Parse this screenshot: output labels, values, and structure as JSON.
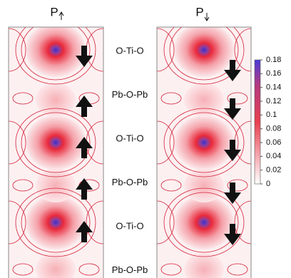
{
  "panels": [
    {
      "title": "P"
    },
    {
      "title": "P"
    }
  ],
  "layer_labels": [
    "O-Ti-O",
    "Pb-O-Pb",
    "O-Ti-O",
    "Pb-O-Pb",
    "O-Ti-O",
    "Pb-O-Pb"
  ],
  "colorbar": {
    "range": [
      0,
      0.18
    ],
    "ticks": [
      0.18,
      0.16,
      0.14,
      0.12,
      0.1,
      0.08,
      0.06,
      0.04,
      0.02,
      0
    ]
  }
}
